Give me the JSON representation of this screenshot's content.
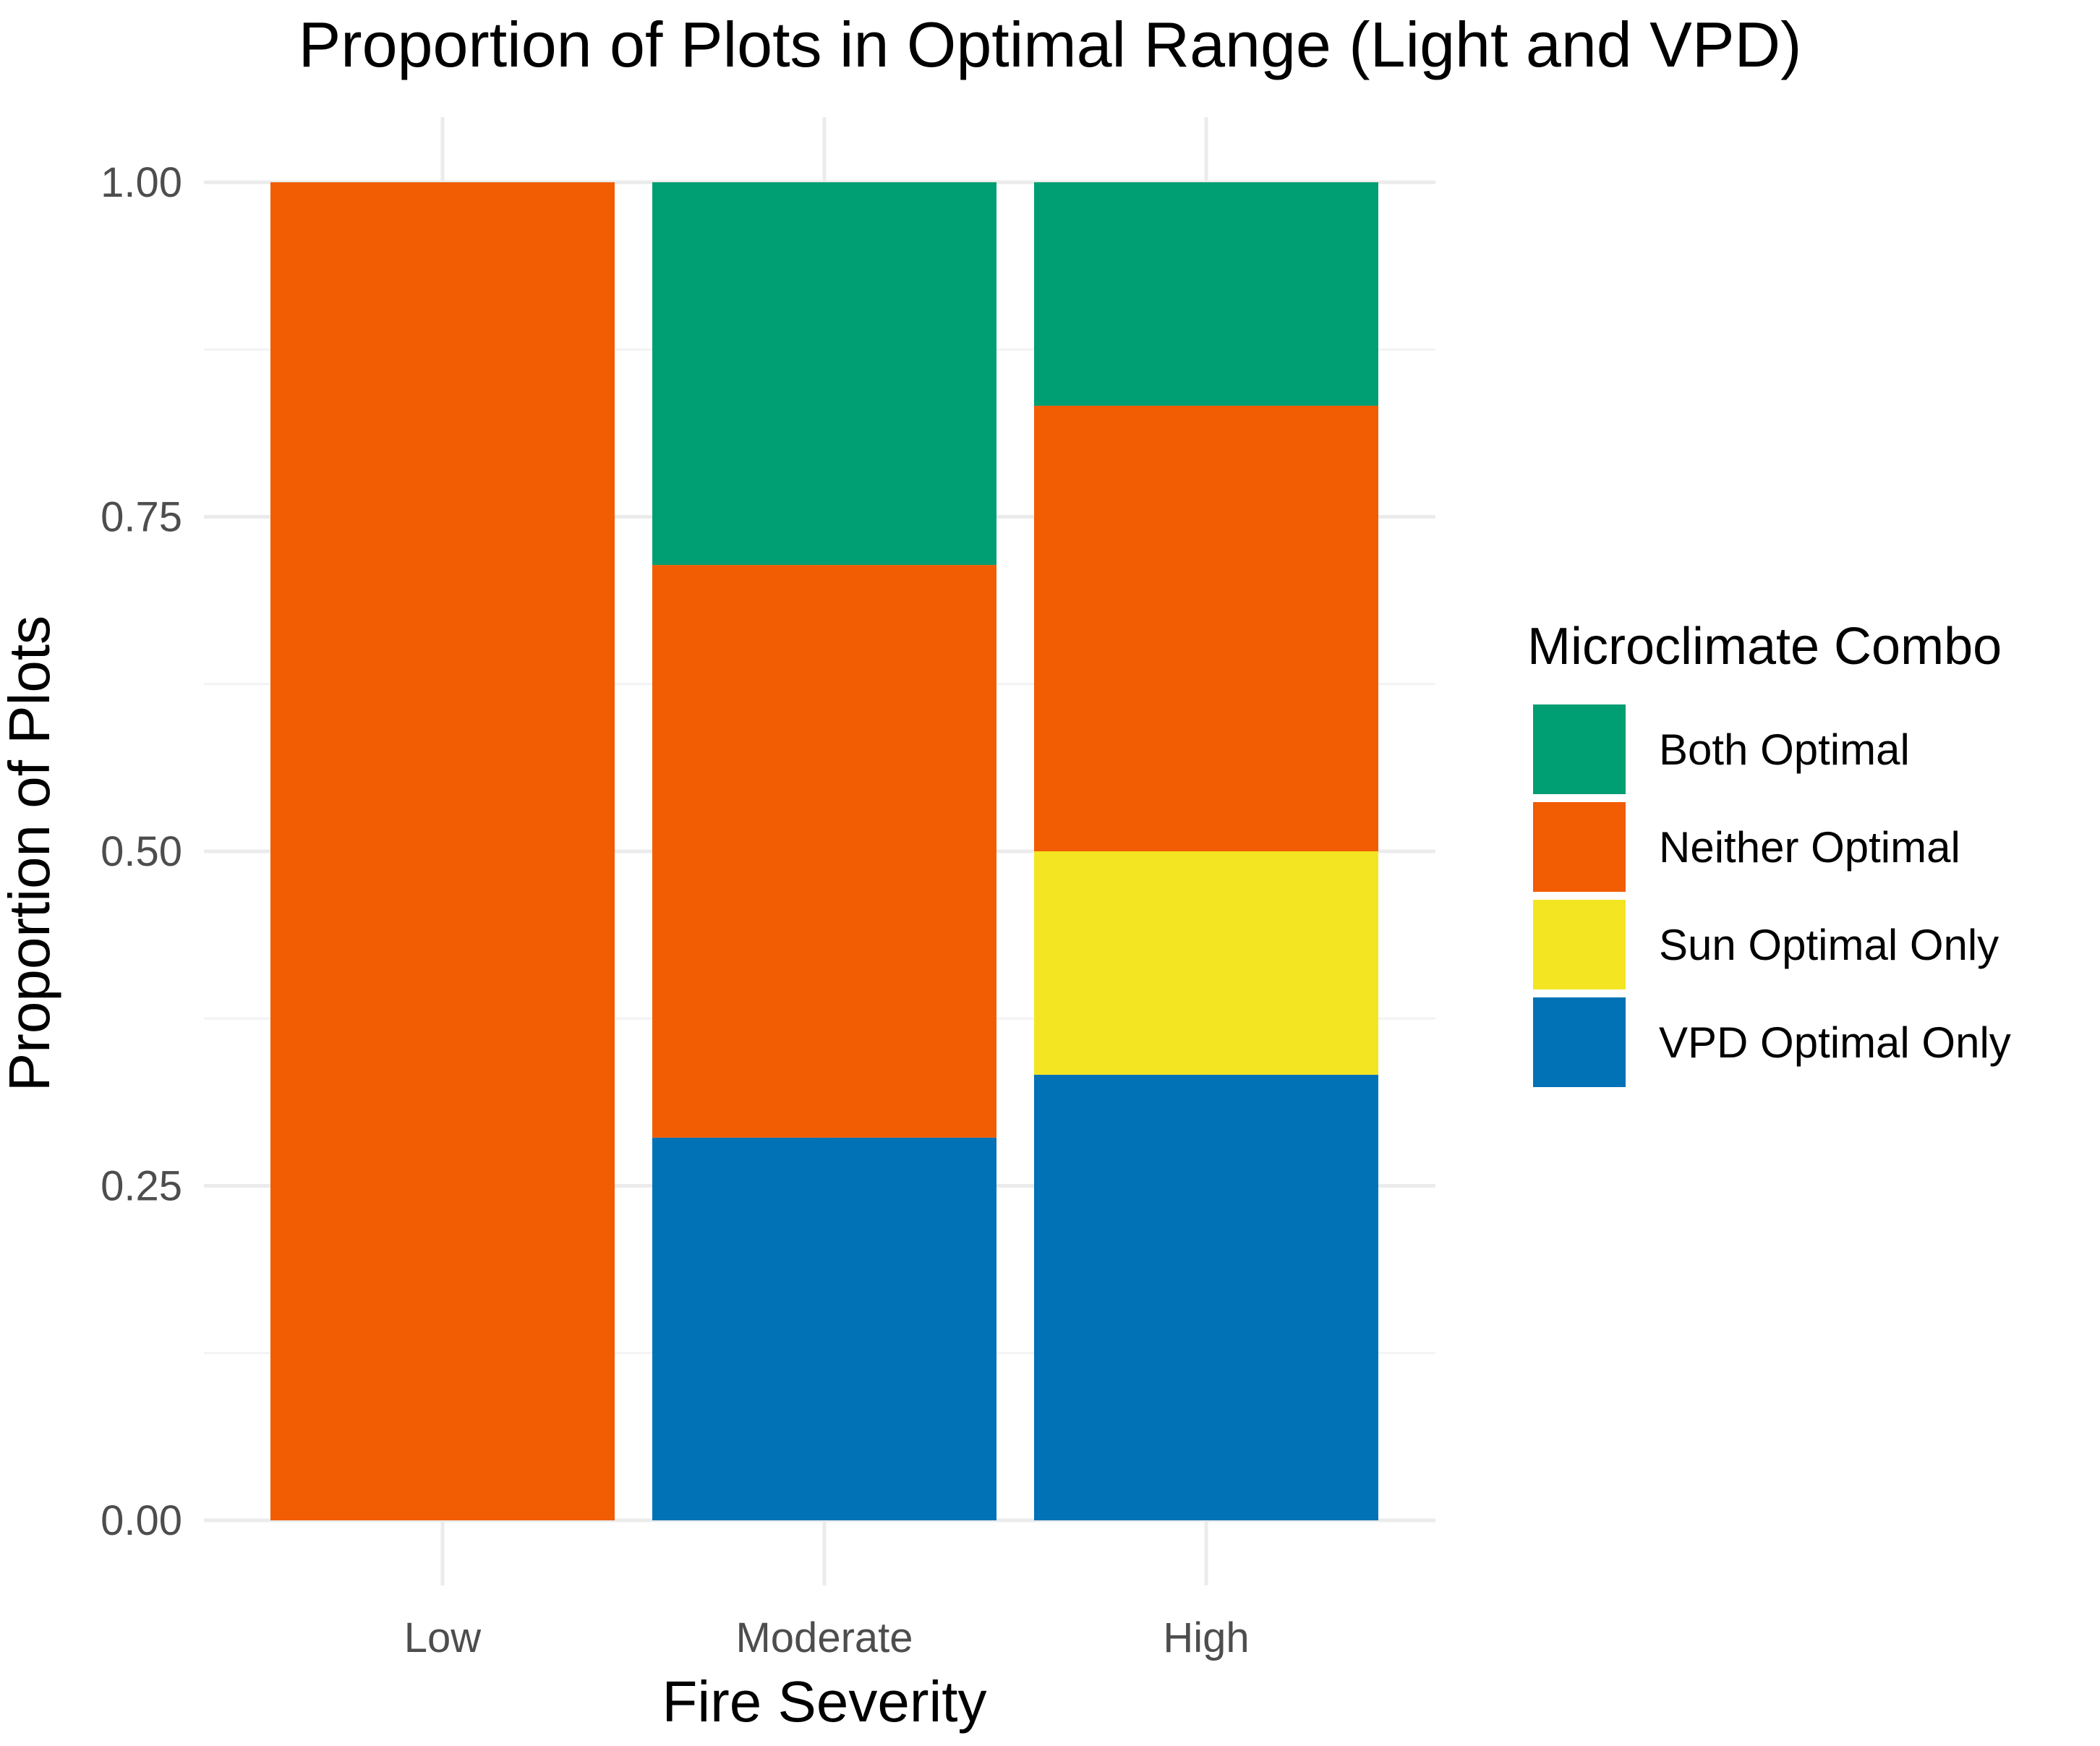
{
  "chart_data": {
    "type": "bar",
    "stacked": true,
    "title": "Proportion of Plots in Optimal Range  (Light and VPD)",
    "xlabel": "Fire Severity",
    "ylabel": "Proportion of Plots",
    "categories": [
      "Low",
      "Moderate",
      "High"
    ],
    "ylim": [
      0,
      1
    ],
    "yticks": [
      0,
      0.25,
      0.5,
      0.75,
      1
    ],
    "ytick_labels": [
      "0.00",
      "0.25",
      "0.50",
      "0.75",
      "1.00"
    ],
    "grid": true,
    "legend": {
      "title": "Microclimate Combo",
      "position": "right"
    },
    "series": [
      {
        "name": "Both Optimal",
        "color": "#009e73",
        "values": [
          0,
          0.286,
          0.167
        ]
      },
      {
        "name": "Neither Optimal",
        "color": "#f25c02",
        "values": [
          1,
          0.428,
          0.333
        ]
      },
      {
        "name": "Sun Optimal Only",
        "color": "#f4e523",
        "values": [
          0,
          0,
          0.167
        ]
      },
      {
        "name": "VPD Optimal Only",
        "color": "#0072b5",
        "values": [
          0,
          0.286,
          0.333
        ]
      }
    ]
  }
}
